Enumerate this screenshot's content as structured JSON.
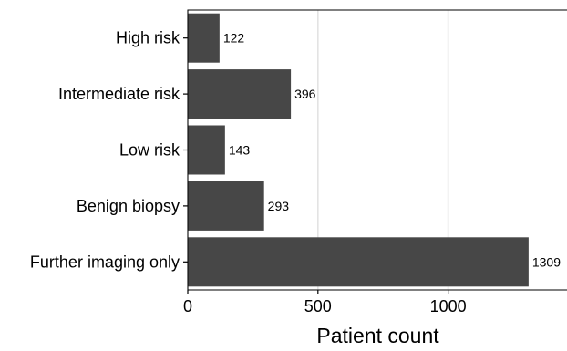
{
  "chart_data": {
    "type": "bar",
    "orientation": "horizontal",
    "categories": [
      "High risk",
      "Intermediate risk",
      "Low risk",
      "Benign biopsy",
      "Further imaging only"
    ],
    "values": [
      122,
      396,
      143,
      293,
      1309
    ],
    "data_labels": [
      "122",
      "396",
      "143",
      "293",
      "1309"
    ],
    "title": "",
    "xlabel": "Patient count",
    "ylabel": "",
    "xlim": [
      0,
      1460
    ],
    "x_ticks": [
      0,
      500,
      1000
    ],
    "x_tick_labels": [
      "0",
      "500",
      "1000"
    ],
    "grid": "vertical major gridlines",
    "legend": "none",
    "colors": {
      "bar": "#474747",
      "grid": "#e3e3e3",
      "axis": "#000000",
      "text": "#000000"
    }
  }
}
